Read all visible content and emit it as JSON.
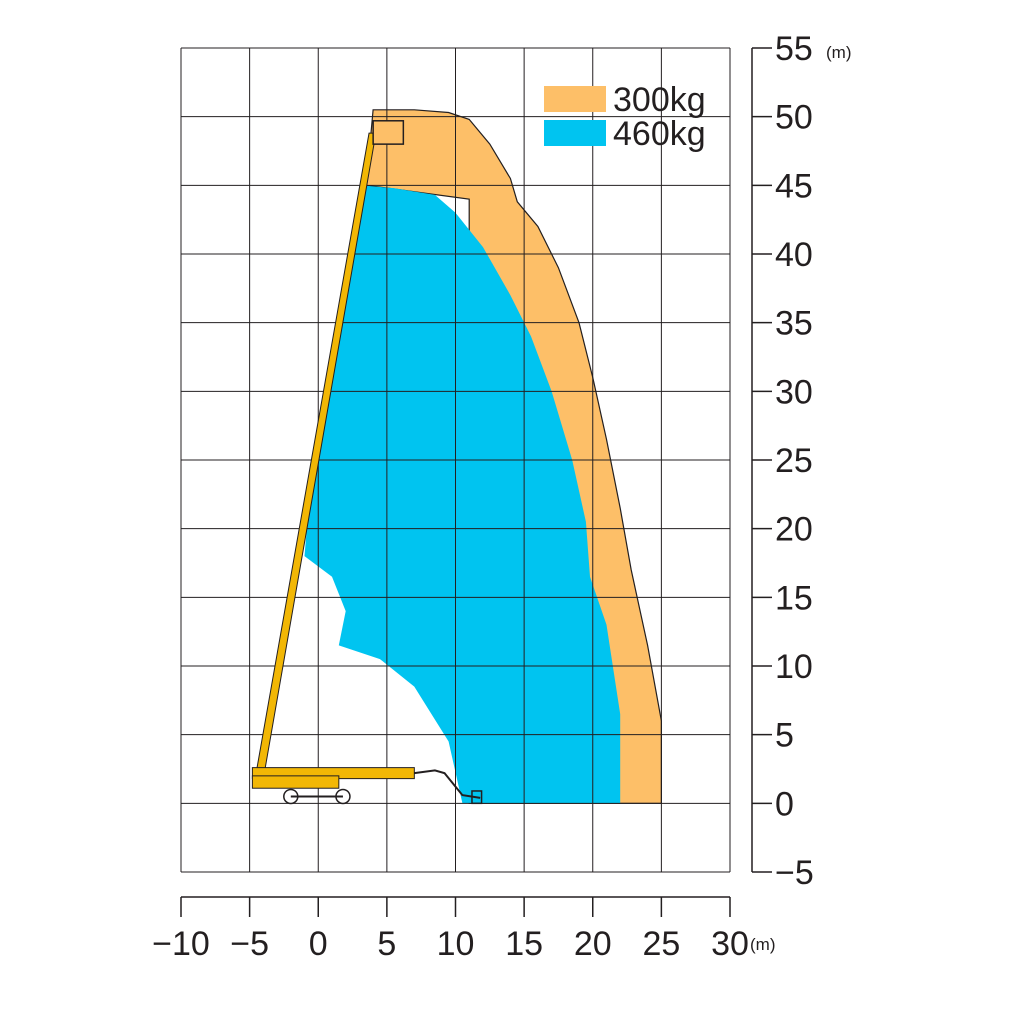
{
  "chart_data": {
    "type": "area",
    "title": "",
    "xlabel": "",
    "ylabel": "",
    "x_unit": "(m)",
    "y_unit": "(m)",
    "xlim": [
      -10,
      30
    ],
    "ylim": [
      -5,
      55
    ],
    "x_ticks": [
      -10,
      -5,
      0,
      5,
      10,
      15,
      20,
      25,
      30
    ],
    "y_ticks": [
      -5,
      0,
      5,
      10,
      15,
      20,
      25,
      30,
      35,
      40,
      45,
      50,
      55
    ],
    "x_tick_labels": [
      "−10",
      "−5",
      "0",
      "5",
      "10",
      "15",
      "20",
      "25",
      "30"
    ],
    "y_tick_labels": [
      "−5",
      "0",
      "5",
      "10",
      "15",
      "20",
      "25",
      "30",
      "35",
      "40",
      "45",
      "50",
      "55"
    ],
    "grid": true,
    "legend_position": "top-right",
    "series": [
      {
        "name": "300kg",
        "color": "#fdbf68",
        "outline": [
          [
            4.0,
            50.5
          ],
          [
            7.0,
            50.5
          ],
          [
            9.5,
            50.3
          ],
          [
            11.0,
            49.8
          ],
          [
            12.5,
            48.0
          ],
          [
            14.0,
            45.5
          ],
          [
            14.5,
            43.8
          ],
          [
            16.0,
            42.0
          ],
          [
            17.5,
            39.0
          ],
          [
            19.0,
            35.0
          ],
          [
            20.0,
            31.0
          ],
          [
            21.0,
            26.5
          ],
          [
            22.0,
            21.5
          ],
          [
            22.8,
            17.0
          ],
          [
            24.0,
            11.5
          ],
          [
            25.0,
            6.0
          ],
          [
            25.0,
            0.0
          ],
          [
            11.0,
            0.0
          ],
          [
            11.0,
            44.0
          ],
          [
            3.5,
            45.0
          ]
        ]
      },
      {
        "name": "460kg",
        "color": "#00c4f0",
        "outline": [
          [
            3.0,
            45.0
          ],
          [
            5.5,
            44.8
          ],
          [
            8.5,
            44.3
          ],
          [
            10.0,
            43.0
          ],
          [
            12.0,
            40.5
          ],
          [
            14.0,
            37.0
          ],
          [
            15.5,
            34.0
          ],
          [
            17.0,
            30.0
          ],
          [
            18.5,
            25.0
          ],
          [
            19.5,
            20.5
          ],
          [
            19.8,
            16.5
          ],
          [
            21.0,
            13.0
          ],
          [
            22.0,
            6.5
          ],
          [
            22.0,
            0.0
          ],
          [
            10.5,
            0.0
          ],
          [
            9.5,
            4.5
          ],
          [
            7.0,
            8.5
          ],
          [
            4.5,
            10.5
          ],
          [
            1.5,
            11.5
          ],
          [
            2.0,
            14.0
          ],
          [
            1.0,
            16.5
          ],
          [
            -1.0,
            18.0
          ],
          [
            -0.5,
            24.0
          ],
          [
            0.5,
            30.0
          ],
          [
            2.0,
            38.0
          ]
        ]
      }
    ]
  }
}
